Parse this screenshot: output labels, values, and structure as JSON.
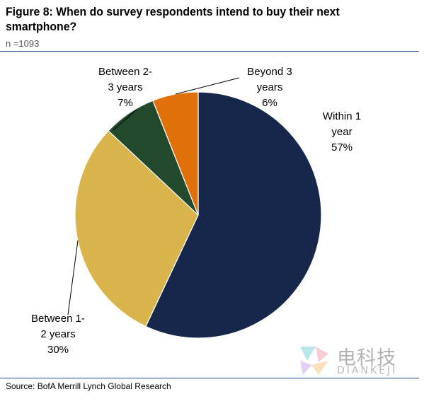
{
  "header": {
    "title": "Figure 8: When do survey respondents intend to buy their next smartphone?",
    "subtitle": "n =1093"
  },
  "footer": {
    "source": "Source: BofA Merrill Lynch Global Research"
  },
  "watermark": {
    "chinese": "电科技",
    "latin": "DIANKEJI"
  },
  "chart_data": {
    "type": "pie",
    "title": "Figure 8: When do survey respondents intend to buy their next smartphone?",
    "subtitle": "n =1093",
    "slices": [
      {
        "label_lines": [
          "Within 1",
          "year",
          "57%"
        ],
        "label": "Within 1 year",
        "value": 57,
        "color": "#17274b"
      },
      {
        "label_lines": [
          "Between 1-",
          "2 years",
          "30%"
        ],
        "label": "Between 1-2 years",
        "value": 30,
        "color": "#d9b44a"
      },
      {
        "label_lines": [
          "Between 2-",
          "3 years",
          "7%"
        ],
        "label": "Between 2-3 years",
        "value": 7,
        "color": "#244a2d"
      },
      {
        "label_lines": [
          "Beyond 3",
          "years",
          "6%"
        ],
        "label": "Beyond 3 years",
        "value": 6,
        "color": "#e0700a"
      }
    ],
    "start_angle_deg": 0,
    "direction": "clockwise",
    "legend": "none",
    "labels": "outside"
  }
}
